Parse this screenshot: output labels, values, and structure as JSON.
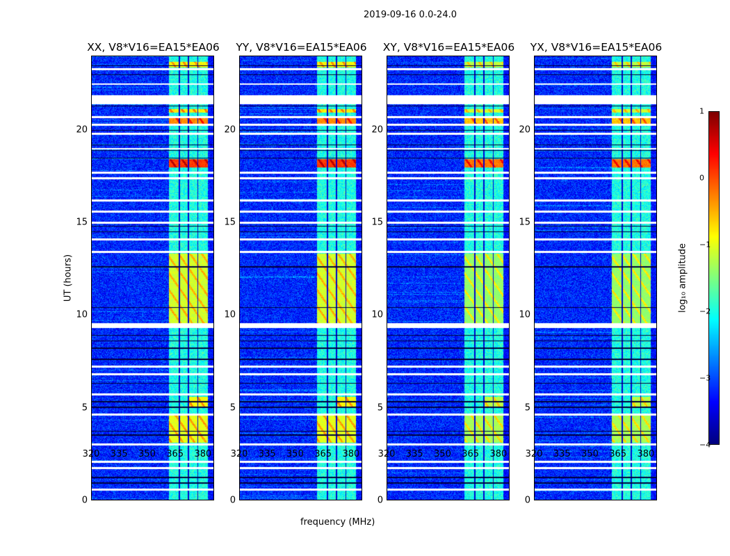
{
  "chart_data": {
    "type": "heatmap",
    "title": "2019-09-16 0.0-24.0",
    "xlabel": "frequency (MHz)",
    "ylabel": "UT (hours)",
    "xlim": [
      320,
      386
    ],
    "ylim": [
      0,
      24
    ],
    "xticks": [
      "320",
      "335",
      "350",
      "365",
      "380"
    ],
    "yticks": [
      "0",
      "5",
      "10",
      "15",
      "20"
    ],
    "panels": [
      {
        "title": "XX, V8*V16=EA15*EA06"
      },
      {
        "title": "YY, V8*V16=EA15*EA06"
      },
      {
        "title": "XY, V8*V16=EA15*EA06"
      },
      {
        "title": "YX, V8*V16=EA15*EA06"
      }
    ],
    "colorbar": {
      "label": "log₁₀ amplitude",
      "range": [
        -4,
        1
      ],
      "ticks": [
        "1",
        "0",
        "−1",
        "−2",
        "−3",
        "−4"
      ],
      "colormap": "jet"
    },
    "background_level": -3.2,
    "rfi_band_mhz": [
      362,
      383
    ],
    "rfi_band_level": -2.0,
    "flagged_gaps_hours": [
      [
        0.5,
        0.6
      ],
      [
        1.65,
        1.75
      ],
      [
        2.0,
        2.1
      ],
      [
        2.95,
        3.05
      ],
      [
        4.55,
        4.65
      ],
      [
        5.65,
        5.75
      ],
      [
        6.75,
        6.85
      ],
      [
        7.15,
        7.25
      ],
      [
        9.3,
        9.55
      ],
      [
        13.35,
        13.45
      ],
      [
        14.05,
        14.15
      ],
      [
        14.95,
        15.05
      ],
      [
        15.55,
        15.65
      ],
      [
        16.15,
        16.25
      ],
      [
        17.35,
        17.45
      ],
      [
        17.65,
        17.75
      ],
      [
        18.95,
        19.05
      ],
      [
        19.75,
        19.85
      ],
      [
        20.25,
        20.35
      ],
      [
        20.65,
        20.75
      ],
      [
        21.4,
        21.9
      ],
      [
        22.45,
        22.55
      ],
      [
        23.25,
        23.35
      ]
    ],
    "dark_rows_hours": [
      0.9,
      1.2,
      3.5,
      3.7,
      5.0,
      5.3,
      6.3,
      7.6,
      8.2,
      8.6,
      8.9,
      10.4,
      12.6,
      14.5,
      14.8,
      18.5,
      18.9,
      19.2,
      20.0,
      21.3,
      23.0,
      23.5
    ],
    "bright_regions": [
      {
        "freq": [
          362,
          383
        ],
        "hours": [
          3.1,
          4.55
        ],
        "level": -1.0
      },
      {
        "freq": [
          372,
          383
        ],
        "hours": [
          5.0,
          5.55
        ],
        "level": -0.9
      },
      {
        "freq": [
          362,
          383
        ],
        "hours": [
          9.55,
          13.3
        ],
        "level": -1.1
      },
      {
        "freq": [
          362,
          383
        ],
        "hours": [
          18.0,
          18.45
        ],
        "level": 0.1
      },
      {
        "freq": [
          362,
          383
        ],
        "hours": [
          20.35,
          20.65
        ],
        "level": -0.3
      },
      {
        "freq": [
          362,
          383
        ],
        "hours": [
          20.95,
          21.15
        ],
        "level": -0.8
      },
      {
        "freq": [
          362,
          383
        ],
        "hours": [
          23.4,
          23.7
        ],
        "level": -0.9
      }
    ],
    "subband_edges_mhz": [
      367.5,
      372.5,
      377.5
    ]
  }
}
